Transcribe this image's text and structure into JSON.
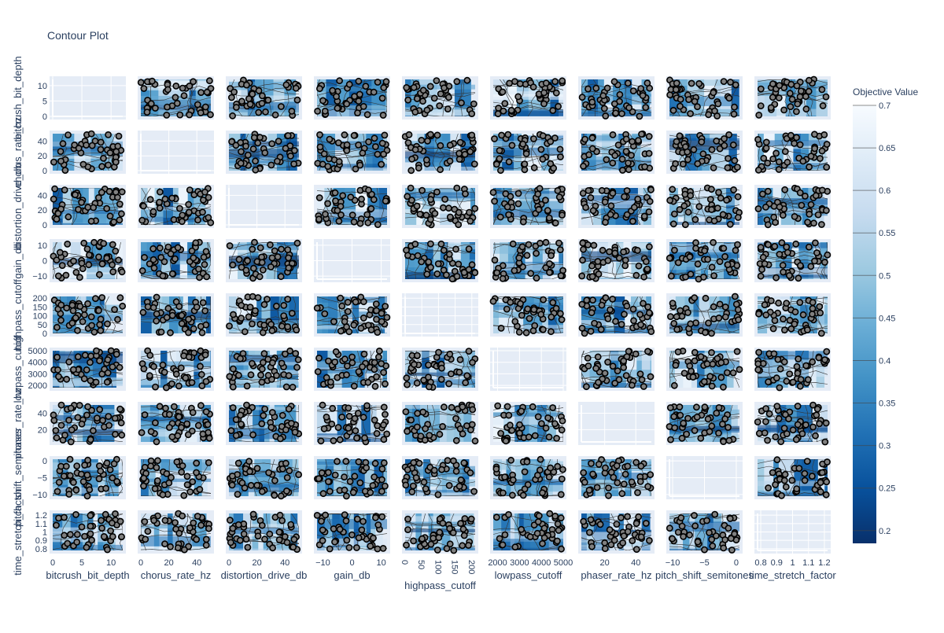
{
  "chart_data": {
    "type": "contour",
    "title": "Contour Plot",
    "params": [
      "bitcrush_bit_depth",
      "chorus_rate_hz",
      "distortion_drive_db",
      "gain_db",
      "highpass_cutoff",
      "lowpass_cutoff",
      "phaser_rate_hz",
      "pitch_shift_semitones",
      "time_stretch_factor"
    ],
    "x_tick_labels": [
      [
        "0",
        "5",
        "10"
      ],
      [
        "0",
        "20",
        "40"
      ],
      [
        "0",
        "20",
        "40"
      ],
      [
        "−10",
        "0",
        "10"
      ],
      [
        "0",
        "50",
        "100",
        "150",
        "200"
      ],
      [
        "2000",
        "3000",
        "4000",
        "5000"
      ],
      [
        "20",
        "40"
      ],
      [
        "−10",
        "−5",
        "0"
      ],
      [
        "0.8",
        "0.9",
        "1",
        "1.1",
        "1.2"
      ]
    ],
    "y_tick_labels": [
      [
        "0",
        "5",
        "10"
      ],
      [
        "0",
        "20",
        "40"
      ],
      [
        "0",
        "20",
        "40"
      ],
      [
        "−10",
        "0",
        "10"
      ],
      [
        "0",
        "50",
        "100",
        "150",
        "200"
      ],
      [
        "2000",
        "3000",
        "4000",
        "5000"
      ],
      [
        "20",
        "40"
      ],
      [
        "−10",
        "−5",
        "0"
      ],
      [
        "0.8",
        "0.9",
        "1",
        "1.1",
        "1.2"
      ]
    ],
    "ranges": [
      [
        0,
        12
      ],
      [
        0,
        50
      ],
      [
        0,
        50
      ],
      [
        -12,
        12
      ],
      [
        0,
        210
      ],
      [
        1800,
        5000
      ],
      [
        5,
        50
      ],
      [
        -10.5,
        0.5
      ],
      [
        0.78,
        1.22
      ]
    ],
    "colorbar": {
      "title": "Objective Value",
      "min": 0.185,
      "max": 0.7,
      "tick_values": [
        0.2,
        0.25,
        0.3,
        0.35,
        0.4,
        0.45,
        0.5,
        0.55,
        0.6,
        0.65,
        0.7
      ],
      "tick_labels": [
        "0.2",
        "0.25",
        "0.3",
        "0.35",
        "0.4",
        "0.45",
        "0.5",
        "0.55",
        "0.6",
        "0.65",
        "0.7"
      ]
    },
    "colorscale": "Blues",
    "diagonal_empty": true,
    "points_per_panel": 42,
    "marker_color": "#808080",
    "marker_outline_color": "#000000",
    "contour_line_color": "#333333",
    "panel_bg": "#e5ecf6",
    "grid_color": "#ffffff"
  }
}
